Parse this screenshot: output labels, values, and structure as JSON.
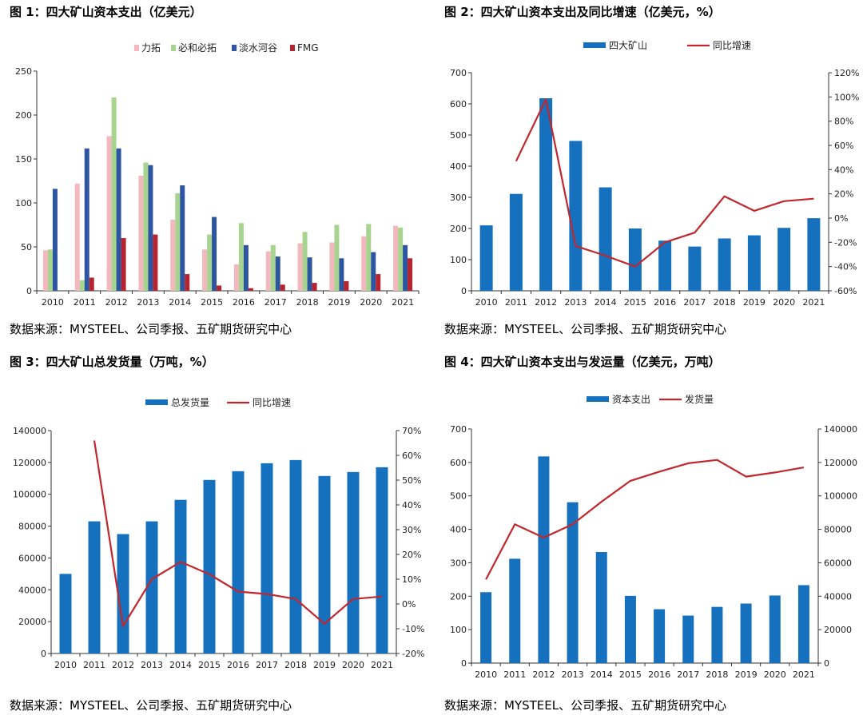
{
  "charts": [
    {
      "title": "图 1：四大矿山资本支出（亿美元）",
      "source": "数据来源：MYSTEEL、公司季报、五矿期货研究中心"
    },
    {
      "title": "图 2：四大矿山资本支出及同比增速（亿美元，%）",
      "source": "数据来源：MYSTEEL、公司季报、五矿期货研究中心"
    },
    {
      "title": "图 3：四大矿山总发货量（万吨，%）",
      "source": "数据来源：MYSTEEL、公司季报、五矿期货研究中心"
    },
    {
      "title": "图 4：四大矿山资本支出与发运量（亿美元，万吨）",
      "source": "数据来源：MYSTEEL、公司季报、五矿期货研究中心"
    }
  ],
  "chart_data": [
    {
      "type": "bar",
      "categories": [
        "2010",
        "2011",
        "2012",
        "2013",
        "2014",
        "2015",
        "2016",
        "2017",
        "2018",
        "2019",
        "2020",
        "2021"
      ],
      "ylim": [
        0,
        250
      ],
      "yticks": [
        "0",
        "50",
        "100",
        "150",
        "200",
        "250"
      ],
      "legend_position": "top",
      "series": [
        {
          "name": "力拓",
          "color": "#f2b8be",
          "values": [
            46,
            122,
            176,
            131,
            81,
            47,
            30,
            45,
            54,
            55,
            62,
            74
          ]
        },
        {
          "name": "必和必拓",
          "color": "#a7d48f",
          "values": [
            47,
            12,
            220,
            146,
            111,
            64,
            77,
            52,
            67,
            75,
            76,
            72
          ]
        },
        {
          "name": "淡水河谷",
          "color": "#2e55a0",
          "values": [
            116,
            162,
            162,
            143,
            120,
            84,
            52,
            39,
            38,
            37,
            44,
            52
          ]
        },
        {
          "name": "FMG",
          "color": "#b5242f",
          "values": [
            0,
            15,
            60,
            64,
            19,
            6,
            3,
            7,
            9,
            11,
            19,
            37
          ]
        }
      ]
    },
    {
      "type": "bar",
      "categories": [
        "2010",
        "2011",
        "2012",
        "2013",
        "2014",
        "2015",
        "2016",
        "2017",
        "2018",
        "2019",
        "2020",
        "2021"
      ],
      "ylim": [
        0,
        700
      ],
      "yticks": [
        "0",
        "100",
        "200",
        "300",
        "400",
        "500",
        "600",
        "700"
      ],
      "y2lim": [
        -60,
        120
      ],
      "y2ticks": [
        "-60%",
        "-40%",
        "-20%",
        "0%",
        "20%",
        "40%",
        "60%",
        "80%",
        "100%",
        "120%"
      ],
      "legend_position": "top",
      "series": [
        {
          "name": "四大矿山",
          "type": "bar",
          "axis": "left",
          "color": "#1570be",
          "values": [
            210,
            311,
            618,
            481,
            332,
            200,
            161,
            142,
            168,
            178,
            202,
            233
          ]
        },
        {
          "name": "同比增速",
          "type": "line",
          "axis": "right",
          "color": "#c1272d",
          "values": [
            null,
            47,
            98,
            -23,
            -31,
            -40,
            -20,
            -12,
            18,
            6,
            14,
            16
          ]
        }
      ]
    },
    {
      "type": "bar",
      "categories": [
        "2010",
        "2011",
        "2012",
        "2013",
        "2014",
        "2015",
        "2016",
        "2017",
        "2018",
        "2019",
        "2020",
        "2021"
      ],
      "ylim": [
        0,
        140000
      ],
      "yticks": [
        "0",
        "20000",
        "40000",
        "60000",
        "80000",
        "100000",
        "120000",
        "140000"
      ],
      "y2lim": [
        -20,
        70
      ],
      "y2ticks": [
        "-20%",
        "-10%",
        "0%",
        "10%",
        "20%",
        "30%",
        "40%",
        "50%",
        "60%",
        "70%"
      ],
      "legend_position": "top",
      "series": [
        {
          "name": "总发货量",
          "type": "bar",
          "axis": "left",
          "color": "#1570be",
          "values": [
            50000,
            83000,
            75000,
            83000,
            96500,
            109000,
            114500,
            119500,
            121500,
            111500,
            114000,
            117000
          ]
        },
        {
          "name": "同比增速",
          "type": "line",
          "axis": "right",
          "color": "#c1272d",
          "values": [
            null,
            66,
            -9,
            10,
            17,
            12,
            5,
            4,
            2,
            -8,
            2,
            3
          ]
        }
      ]
    },
    {
      "type": "bar",
      "categories": [
        "2010",
        "2011",
        "2012",
        "2013",
        "2014",
        "2015",
        "2016",
        "2017",
        "2018",
        "2019",
        "2020",
        "2021"
      ],
      "ylim": [
        0,
        700
      ],
      "yticks": [
        "0",
        "100",
        "200",
        "300",
        "400",
        "500",
        "600",
        "700"
      ],
      "y2lim": [
        0,
        140000
      ],
      "y2ticks": [
        "0",
        "20000",
        "40000",
        "60000",
        "80000",
        "100000",
        "120000",
        "140000"
      ],
      "legend_position": "top",
      "series": [
        {
          "name": "资本支出",
          "type": "bar",
          "axis": "left",
          "color": "#1570be",
          "values": [
            212,
            312,
            618,
            481,
            332,
            201,
            161,
            142,
            168,
            178,
            202,
            233
          ]
        },
        {
          "name": "发货量",
          "type": "line",
          "axis": "right",
          "color": "#c1272d",
          "values": [
            50000,
            83000,
            75000,
            83000,
            96500,
            109000,
            114500,
            119500,
            121500,
            111500,
            114000,
            117000
          ]
        }
      ]
    }
  ]
}
